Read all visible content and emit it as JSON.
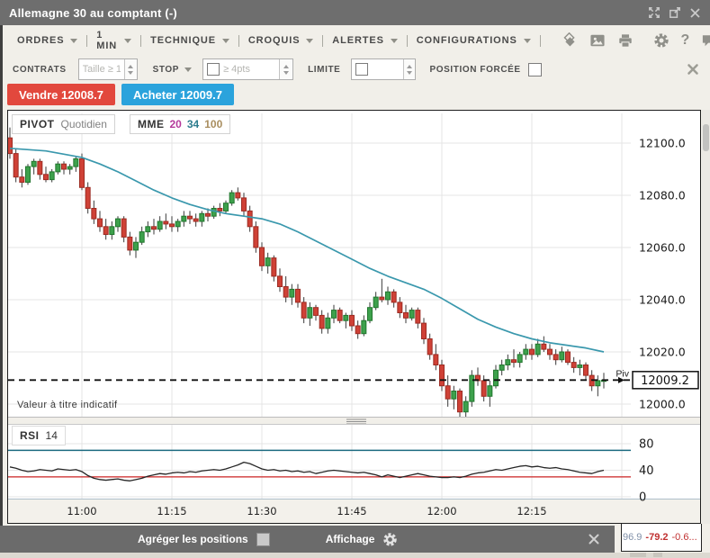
{
  "window": {
    "title": "Allemagne 30 au comptant (-)"
  },
  "menubar": {
    "items": [
      {
        "label": "ORDRES"
      },
      {
        "label": "1 MIN"
      },
      {
        "label": "TECHNIQUE"
      },
      {
        "label": "CROQUIS"
      },
      {
        "label": "ALERTES"
      },
      {
        "label": "CONFIGURATIONS"
      }
    ]
  },
  "controls": {
    "contrats_label": "CONTRATS",
    "taille_placeholder": "Taille ≥ 1",
    "stop_label": "STOP",
    "stop_placeholder": "≥ 4pts",
    "limite_label": "LIMITE",
    "position_forcee_label": "POSITION FORCÉE"
  },
  "orders": {
    "sell_label": "Vendre 12008.7",
    "buy_label": "Acheter 12009.7",
    "sell_color": "#e2483d",
    "buy_color": "#2ba3dc"
  },
  "legend": {
    "pivot_title": "PIVOT",
    "pivot_period": "Quotidien",
    "mme_title": "MME",
    "mme_periods": [
      "20",
      "34",
      "100"
    ],
    "mme_colors": [
      "#b5399b",
      "#2d7d8e",
      "#a98e5f"
    ]
  },
  "rsi": {
    "label": "RSI",
    "period": "14"
  },
  "chart_notes": {
    "indicative": "Valeur à titre indicatif",
    "pivot_tag": "Piv",
    "last_price_label": "12009.2"
  },
  "bottom_bar": {
    "aggregate_label": "Agréger les positions",
    "display_label": "Affichage"
  },
  "bottom_right": {
    "value1": "96.9",
    "value2": "-79.2",
    "value3": "-0.6..."
  },
  "icons": {
    "caret_down": "triangle-down",
    "spinner": "up-down-arrows",
    "close": "x-cross",
    "gear": "cog-wheel",
    "help": "?",
    "drag_handle": "triple-bar"
  },
  "chart_data": {
    "type": "candlestick",
    "title": "Allemagne 30 au comptant, 1 MIN",
    "x_start_time": "10:48",
    "interval_minutes": 1,
    "x_ticks": [
      {
        "label": "11:00",
        "minute": 12
      },
      {
        "label": "11:15",
        "minute": 27
      },
      {
        "label": "11:30",
        "minute": 42
      },
      {
        "label": "11:45",
        "minute": 57
      },
      {
        "label": "12:00",
        "minute": 72
      },
      {
        "label": "12:15",
        "minute": 87
      }
    ],
    "extra_gridline_minute": 102,
    "y_ticks": [
      12100,
      12080,
      12060,
      12040,
      12020,
      12000
    ],
    "y_tick_labels": [
      "12100.0",
      "12080.0",
      "12060.0",
      "12040.0",
      "12020.0",
      "12000.0"
    ],
    "ylim": [
      11995,
      12111
    ],
    "pivot_level": 12009.2,
    "last_price": 12009.2,
    "color_up": "#3da14c",
    "color_up_border": "#22762e",
    "color_down": "#cf4136",
    "color_down_border": "#9c2b22",
    "color_wick": "#3a3a3a",
    "color_ma": "#3a98ad",
    "color_grid": "#e4e4e4",
    "color_rsi": "#262626",
    "color_rsi_upper": "#1b6a80",
    "color_rsi_lower": "#cc2222",
    "candles": [
      [
        12102,
        12106,
        12094,
        12096
      ],
      [
        12096,
        12098,
        12085,
        12087
      ],
      [
        12087,
        12090,
        12083,
        12085
      ],
      [
        12085,
        12092,
        12084,
        12091
      ],
      [
        12091,
        12094,
        12088,
        12093
      ],
      [
        12093,
        12094,
        12086,
        12088
      ],
      [
        12088,
        12091,
        12085,
        12086
      ],
      [
        12086,
        12090,
        12085,
        12089
      ],
      [
        12089,
        12093,
        12088,
        12092
      ],
      [
        12092,
        12093,
        12088,
        12090
      ],
      [
        12090,
        12092,
        12088,
        12091
      ],
      [
        12091,
        12095,
        12089,
        12094
      ],
      [
        12094,
        12096,
        12082,
        12083
      ],
      [
        12083,
        12085,
        12073,
        12075
      ],
      [
        12075,
        12078,
        12069,
        12071
      ],
      [
        12071,
        12074,
        12066,
        12068
      ],
      [
        12068,
        12071,
        12063,
        12065
      ],
      [
        12065,
        12070,
        12063,
        12068
      ],
      [
        12068,
        12072,
        12066,
        12071
      ],
      [
        12071,
        12072,
        12062,
        12064
      ],
      [
        12064,
        12066,
        12057,
        12059
      ],
      [
        12059,
        12064,
        12056,
        12062
      ],
      [
        12062,
        12068,
        12061,
        12066
      ],
      [
        12066,
        12070,
        12064,
        12068
      ],
      [
        12068,
        12071,
        12065,
        12067
      ],
      [
        12067,
        12072,
        12066,
        12070
      ],
      [
        12070,
        12073,
        12067,
        12069
      ],
      [
        12069,
        12072,
        12066,
        12068
      ],
      [
        12068,
        12071,
        12066,
        12070
      ],
      [
        12070,
        12074,
        12068,
        12072
      ],
      [
        12072,
        12074,
        12069,
        12071
      ],
      [
        12071,
        12073,
        12068,
        12070
      ],
      [
        12070,
        12074,
        12068,
        12073
      ],
      [
        12073,
        12075,
        12070,
        12072
      ],
      [
        12072,
        12076,
        12071,
        12075
      ],
      [
        12075,
        12077,
        12072,
        12074
      ],
      [
        12074,
        12078,
        12073,
        12077
      ],
      [
        12077,
        12082,
        12076,
        12081
      ],
      [
        12081,
        12083,
        12078,
        12079
      ],
      [
        12079,
        12081,
        12072,
        12074
      ],
      [
        12074,
        12076,
        12066,
        12068
      ],
      [
        12068,
        12070,
        12058,
        12060
      ],
      [
        12060,
        12062,
        12051,
        12053
      ],
      [
        12053,
        12058,
        12050,
        12056
      ],
      [
        12056,
        12057,
        12047,
        12049
      ],
      [
        12049,
        12052,
        12043,
        12045
      ],
      [
        12045,
        12049,
        12039,
        12041
      ],
      [
        12041,
        12046,
        12038,
        12044
      ],
      [
        12044,
        12046,
        12037,
        12039
      ],
      [
        12039,
        12041,
        12031,
        12033
      ],
      [
        12033,
        12039,
        12030,
        12037
      ],
      [
        12037,
        12038,
        12032,
        12034
      ],
      [
        12034,
        12036,
        12027,
        12029
      ],
      [
        12029,
        12035,
        12027,
        12033
      ],
      [
        12033,
        12038,
        12031,
        12036
      ],
      [
        12036,
        12037,
        12031,
        12032
      ],
      [
        12032,
        12035,
        12029,
        12034
      ],
      [
        12034,
        12036,
        12028,
        12030
      ],
      [
        12030,
        12032,
        12025,
        12027
      ],
      [
        12027,
        12034,
        12026,
        12032
      ],
      [
        12032,
        12039,
        12031,
        12037
      ],
      [
        12037,
        12043,
        12036,
        12041
      ],
      [
        12041,
        12048,
        12039,
        12040
      ],
      [
        12040,
        12045,
        12038,
        12043
      ],
      [
        12043,
        12044,
        12037,
        12039
      ],
      [
        12039,
        12041,
        12033,
        12035
      ],
      [
        12035,
        12038,
        12031,
        12033
      ],
      [
        12033,
        12037,
        12032,
        12036
      ],
      [
        12036,
        12037,
        12029,
        12031
      ],
      [
        12031,
        12033,
        12023,
        12025
      ],
      [
        12025,
        12027,
        12017,
        12019
      ],
      [
        12019,
        12023,
        12013,
        12015
      ],
      [
        12015,
        12017,
        12005,
        12007
      ],
      [
        12007,
        12011,
        11999,
        12002
      ],
      [
        12002,
        12007,
        11998,
        12005
      ],
      [
        12005,
        12006,
        11995,
        11997
      ],
      [
        11997,
        12003,
        11994,
        12001
      ],
      [
        12001,
        12013,
        11999,
        12011
      ],
      [
        12011,
        12014,
        12007,
        12009
      ],
      [
        12009,
        12011,
        12001,
        12003
      ],
      [
        12003,
        12009,
        11999,
        12007
      ],
      [
        12007,
        12015,
        12006,
        12013
      ],
      [
        12013,
        12017,
        12011,
        12015
      ],
      [
        12015,
        12019,
        12013,
        12017
      ],
      [
        12017,
        12021,
        12014,
        12016
      ],
      [
        12016,
        12020,
        12014,
        12019
      ],
      [
        12019,
        12023,
        12017,
        12021
      ],
      [
        12021,
        12023,
        12017,
        12019
      ],
      [
        12019,
        12025,
        12018,
        12023
      ],
      [
        12023,
        12026,
        12020,
        12021
      ],
      [
        12021,
        12023,
        12017,
        12019
      ],
      [
        12019,
        12021,
        12015,
        12017
      ],
      [
        12017,
        12022,
        12016,
        12020
      ],
      [
        12020,
        12021,
        12015,
        12016
      ],
      [
        12016,
        12018,
        12012,
        12014
      ],
      [
        12014,
        12017,
        12011,
        12015
      ],
      [
        12015,
        12016,
        12009,
        12011
      ],
      [
        12011,
        12013,
        12005,
        12007
      ],
      [
        12007,
        12011,
        12003,
        12009
      ],
      [
        12009,
        12012,
        12006,
        12009.2
      ]
    ],
    "mme34": [
      [
        0,
        12098
      ],
      [
        6,
        12097
      ],
      [
        12,
        12094.5
      ],
      [
        15,
        12092
      ],
      [
        18,
        12089
      ],
      [
        21,
        12085.5
      ],
      [
        24,
        12082
      ],
      [
        27,
        12079
      ],
      [
        30,
        12076.5
      ],
      [
        33,
        12074.5
      ],
      [
        36,
        12073
      ],
      [
        39,
        12072
      ],
      [
        42,
        12071
      ],
      [
        45,
        12069
      ],
      [
        48,
        12066
      ],
      [
        51,
        12062.5
      ],
      [
        54,
        12059
      ],
      [
        57,
        12055.5
      ],
      [
        60,
        12052
      ],
      [
        63,
        12049
      ],
      [
        66,
        12046.5
      ],
      [
        69,
        12044
      ],
      [
        72,
        12040.5
      ],
      [
        75,
        12036.5
      ],
      [
        78,
        12032.5
      ],
      [
        81,
        12029.5
      ],
      [
        84,
        12027
      ],
      [
        87,
        12025
      ],
      [
        90,
        12023.5
      ],
      [
        93,
        12022.5
      ],
      [
        96,
        12021.5
      ],
      [
        99,
        12020
      ]
    ],
    "rsi14": [
      45,
      43,
      40,
      38,
      39,
      41,
      40,
      39,
      42,
      41,
      40,
      41,
      38,
      32,
      28,
      26,
      25,
      26,
      27,
      25,
      24,
      26,
      28,
      31,
      33,
      35,
      34,
      36,
      37,
      36,
      38,
      37,
      39,
      40,
      41,
      40,
      42,
      45,
      48,
      52,
      50,
      46,
      42,
      40,
      41,
      39,
      40,
      38,
      39,
      37,
      38,
      35,
      37,
      39,
      40,
      39,
      38,
      37,
      36,
      37,
      35,
      33,
      30,
      33,
      31,
      29,
      31,
      33,
      35,
      33,
      31,
      30,
      29,
      29,
      30,
      29,
      31,
      34,
      36,
      37,
      39,
      41,
      40,
      42,
      44,
      46,
      47,
      45,
      46,
      44,
      43,
      44,
      42,
      41,
      39,
      37,
      36,
      35,
      38,
      40
    ],
    "rsi_upper": 70,
    "rsi_lower": 30,
    "rsi_ticks": [
      80,
      40,
      0
    ],
    "rsi_tick_labels": [
      "80",
      "40",
      "0"
    ]
  }
}
